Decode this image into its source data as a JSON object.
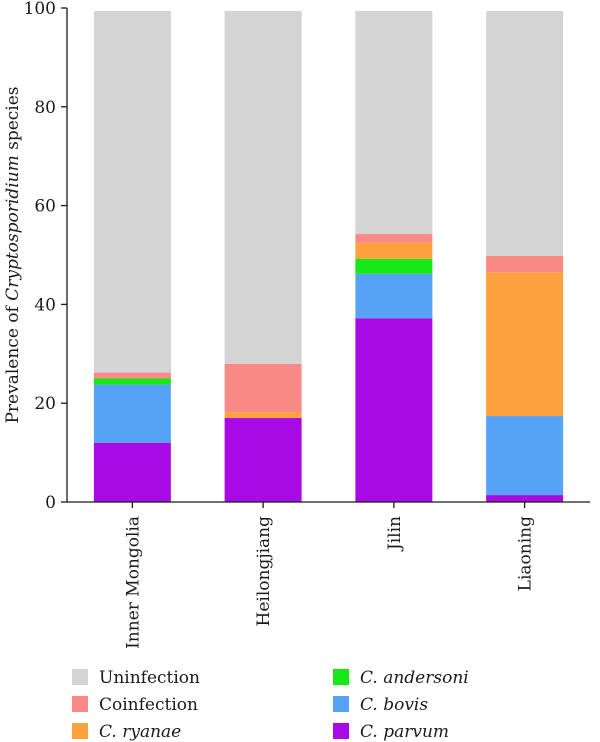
{
  "chart_data": {
    "type": "bar",
    "stacked": true,
    "categories": [
      "Inner Mongolia",
      "Heilongjiang",
      "Jilin",
      "Liaoning"
    ],
    "ylabel_prefix": "Prevalence of ",
    "ylabel_italic": "Cryptosporidium",
    "ylabel_suffix": " species",
    "ylim": [
      0,
      100
    ],
    "yticks": [
      0,
      20,
      40,
      60,
      80,
      100
    ],
    "grid": false,
    "legend_position": "bottom",
    "series": [
      {
        "name": "C. parvum",
        "italic": true,
        "color": "#a70ae3",
        "values": [
          12,
          17,
          37.2,
          1.4
        ]
      },
      {
        "name": "C. bovis",
        "italic": true,
        "color": "#56a2f5",
        "values": [
          11.8,
          0,
          9,
          16
        ]
      },
      {
        "name": "C. andersoni",
        "italic": true,
        "color": "#16e818",
        "values": [
          1.2,
          0,
          3,
          0
        ]
      },
      {
        "name": "C. ryanae",
        "italic": true,
        "color": "#fba13e",
        "values": [
          0,
          1.2,
          3.3,
          29.1
        ]
      },
      {
        "name": "Coinfection",
        "italic": false,
        "color": "#fa8a87",
        "values": [
          1.2,
          9.8,
          1.8,
          3.3
        ]
      },
      {
        "name": "Uninfection",
        "italic": false,
        "color": "#d4d4d4",
        "values": [
          73.2,
          71.4,
          45.1,
          49.6
        ]
      }
    ],
    "legend_order": [
      "Uninfection",
      "Coinfection",
      "C. ryanae",
      "C. andersoni",
      "C. bovis",
      "C. parvum"
    ]
  }
}
